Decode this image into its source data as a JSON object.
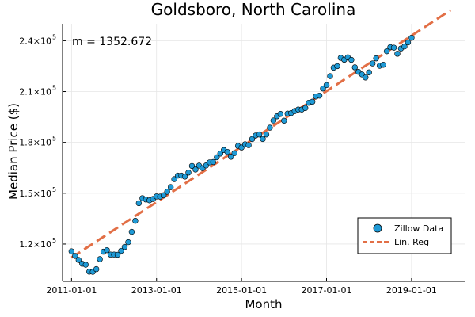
{
  "chart_data": {
    "type": "scatter",
    "title": "Goldsboro, North Carolina",
    "xlabel": "Month",
    "ylabel": "Median Price ($)",
    "annotation": "m = 1352.672",
    "x_ticks": [
      "2011-01-01",
      "2013-01-01",
      "2015-01-01",
      "2017-01-01",
      "2019-01-01"
    ],
    "y_ticks": [
      {
        "value": 120000,
        "mantissa": "1.2×10",
        "exp": "5"
      },
      {
        "value": 150000,
        "mantissa": "1.5×10",
        "exp": "5"
      },
      {
        "value": 180000,
        "mantissa": "1.8×10",
        "exp": "5"
      },
      {
        "value": 210000,
        "mantissa": "2.1×10",
        "exp": "5"
      },
      {
        "value": 240000,
        "mantissa": "2.4×10",
        "exp": "5"
      }
    ],
    "xlim": [
      "2010-10-15",
      "2020-04-01"
    ],
    "ylim": [
      98000,
      250000
    ],
    "grid": true,
    "legend_position": "bottom-right",
    "colors": {
      "points": "#1f9ad6",
      "regression": "#e26f46"
    },
    "series": [
      {
        "name": "Zillow Data",
        "type": "scatter",
        "start": "2011-01",
        "values": [
          115700,
          113000,
          110600,
          108400,
          107800,
          103700,
          103600,
          105200,
          111100,
          115500,
          116400,
          113800,
          113800,
          113700,
          116000,
          118300,
          121100,
          127200,
          133700,
          144100,
          147100,
          146300,
          145800,
          146600,
          148100,
          148000,
          148800,
          150900,
          153600,
          158300,
          160400,
          160400,
          159800,
          162200,
          166100,
          164000,
          166300,
          164800,
          166400,
          168200,
          168400,
          171200,
          173400,
          175500,
          174400,
          171500,
          173700,
          177900,
          177000,
          178900,
          178400,
          182000,
          184100,
          184700,
          182000,
          184700,
          188700,
          192900,
          195400,
          196800,
          192800,
          197000,
          197300,
          198500,
          199400,
          199400,
          200300,
          203400,
          204000,
          207100,
          207600,
          211800,
          213800,
          219100,
          224100,
          225000,
          229900,
          228800,
          230200,
          228700,
          224300,
          221600,
          220100,
          218300,
          221300,
          226600,
          229600,
          225200,
          225800,
          233800,
          236200,
          235900,
          232300,
          235400,
          236600,
          239000,
          241700
        ]
      },
      {
        "name": "Lin. Reg",
        "type": "line",
        "style": "dashed",
        "start": "2011-01-01",
        "end": "2019-12-01",
        "values": [
          112000,
          258000
        ]
      }
    ]
  }
}
